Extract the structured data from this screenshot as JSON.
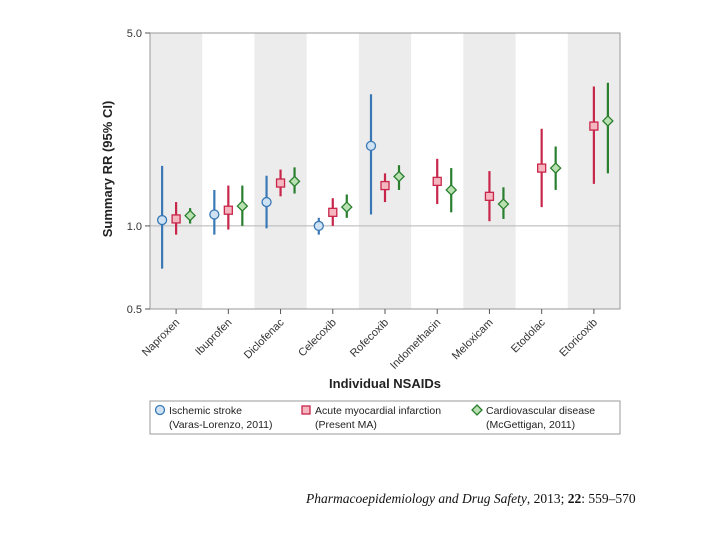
{
  "chart_data": {
    "type": "forest",
    "xlabel": "Individual NSAIDs",
    "ylabel": "Summary RR (95% CI)",
    "y_scale": "log",
    "ylim": [
      0.5,
      5.0
    ],
    "y_ticks": [
      {
        "value": 0.5,
        "label": "0.5"
      },
      {
        "value": 1.0,
        "label": "1.0"
      },
      {
        "value": 5.0,
        "label": "5.0"
      }
    ],
    "reference_line": 1.0,
    "categories": [
      "Naproxen",
      "Ibuprofen",
      "Diclofenac",
      "Celecoxib",
      "Rofecoxib",
      "Indomethacin",
      "Meloxicam",
      "Etodolac",
      "Etoricoxib"
    ],
    "series": [
      {
        "name": "Ischemic stroke",
        "source": "(Varas-Lorenzo, 2011)",
        "color": "#3a78b5",
        "fill": "#cfe2f3",
        "marker": "circle",
        "points": [
          {
            "category": "Naproxen",
            "rr": 1.05,
            "low": 0.7,
            "high": 1.65
          },
          {
            "category": "Ibuprofen",
            "rr": 1.1,
            "low": 0.93,
            "high": 1.35
          },
          {
            "category": "Diclofenac",
            "rr": 1.22,
            "low": 0.98,
            "high": 1.52
          },
          {
            "category": "Celecoxib",
            "rr": 1.0,
            "low": 0.93,
            "high": 1.07
          },
          {
            "category": "Rofecoxib",
            "rr": 1.95,
            "low": 1.1,
            "high": 3.0
          }
        ]
      },
      {
        "name": "Acute myocardial infarction",
        "source": "(Present MA)",
        "color": "#c8264a",
        "fill": "#f4b6bf",
        "marker": "square",
        "points": [
          {
            "category": "Naproxen",
            "rr": 1.06,
            "low": 0.93,
            "high": 1.22
          },
          {
            "category": "Ibuprofen",
            "rr": 1.14,
            "low": 0.97,
            "high": 1.4
          },
          {
            "category": "Diclofenac",
            "rr": 1.43,
            "low": 1.28,
            "high": 1.6
          },
          {
            "category": "Celecoxib",
            "rr": 1.12,
            "low": 1.0,
            "high": 1.26
          },
          {
            "category": "Rofecoxib",
            "rr": 1.4,
            "low": 1.22,
            "high": 1.55
          },
          {
            "category": "Indomethacin",
            "rr": 1.45,
            "low": 1.2,
            "high": 1.75
          },
          {
            "category": "Meloxicam",
            "rr": 1.28,
            "low": 1.04,
            "high": 1.58
          },
          {
            "category": "Etodolac",
            "rr": 1.62,
            "low": 1.17,
            "high": 2.25
          },
          {
            "category": "Etoricoxib",
            "rr": 2.3,
            "low": 1.42,
            "high": 3.2
          }
        ]
      },
      {
        "name": "Cardiovascular disease",
        "source": "(McGettigan, 2011)",
        "color": "#2a7f2f",
        "fill": "#b8e0b0",
        "marker": "diamond",
        "points": [
          {
            "category": "Naproxen",
            "rr": 1.09,
            "low": 1.02,
            "high": 1.16
          },
          {
            "category": "Ibuprofen",
            "rr": 1.18,
            "low": 1.0,
            "high": 1.4
          },
          {
            "category": "Diclofenac",
            "rr": 1.45,
            "low": 1.31,
            "high": 1.63
          },
          {
            "category": "Celecoxib",
            "rr": 1.17,
            "low": 1.07,
            "high": 1.3
          },
          {
            "category": "Rofecoxib",
            "rr": 1.51,
            "low": 1.35,
            "high": 1.66
          },
          {
            "category": "Indomethacin",
            "rr": 1.35,
            "low": 1.12,
            "high": 1.62
          },
          {
            "category": "Meloxicam",
            "rr": 1.2,
            "low": 1.06,
            "high": 1.38
          },
          {
            "category": "Etodolac",
            "rr": 1.62,
            "low": 1.35,
            "high": 1.94
          },
          {
            "category": "Etoricoxib",
            "rr": 2.4,
            "low": 1.55,
            "high": 3.3
          }
        ]
      }
    ],
    "legend_position": "bottom"
  },
  "citation": {
    "journal": "Pharmacoepidemiology and Drug Safety",
    "year": ", 2013; ",
    "volume": "22",
    "pages": ": 559–570"
  }
}
